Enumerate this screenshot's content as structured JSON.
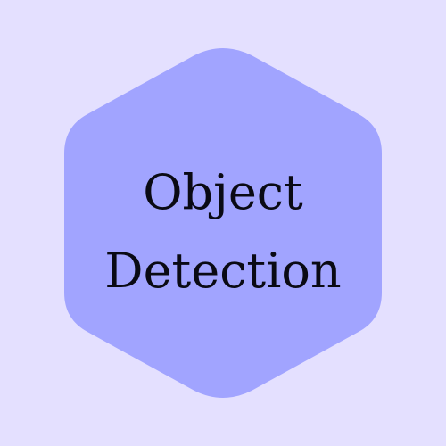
{
  "badge": {
    "title_line_1": "Object",
    "title_line_2": "Detection"
  },
  "colors": {
    "background": "#e4e0ff",
    "hexagon_fill": "#a1a4ff",
    "text": "#0a0a14"
  }
}
